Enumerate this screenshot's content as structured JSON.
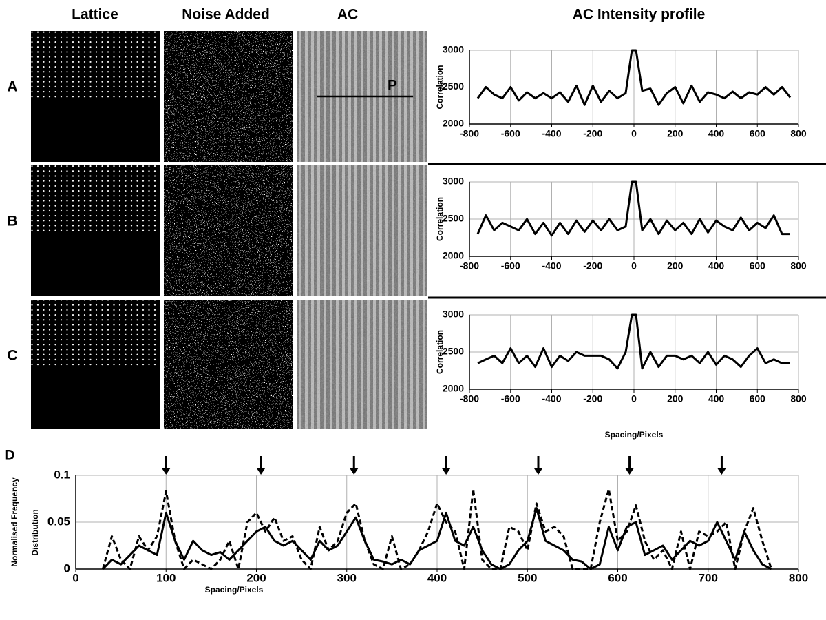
{
  "figure": {
    "headers": [
      "Lattice",
      "Noise Added",
      "AC",
      "AC Intensity profile"
    ],
    "panel_labels": [
      "A",
      "B",
      "C",
      "D"
    ],
    "profile_marker": "P"
  },
  "chart_data": [
    {
      "type": "line",
      "ylabel": "Correlation",
      "xlim": [
        -800,
        800
      ],
      "xticks": [
        -800,
        -600,
        -400,
        -200,
        0,
        200,
        400,
        600,
        800
      ],
      "ylim": [
        2000,
        3000
      ],
      "yticks": [
        2000,
        2500,
        3000
      ],
      "grid": true,
      "x": [
        -760,
        -720,
        -680,
        -640,
        -600,
        -560,
        -520,
        -480,
        -440,
        -400,
        -360,
        -320,
        -280,
        -240,
        -200,
        -160,
        -120,
        -80,
        -40,
        -10,
        10,
        40,
        80,
        120,
        160,
        200,
        240,
        280,
        320,
        360,
        400,
        440,
        480,
        520,
        560,
        600,
        640,
        680,
        720,
        760
      ],
      "series": [
        {
          "color": "#000000",
          "style": "solid",
          "values": [
            2350,
            2500,
            2400,
            2350,
            2500,
            2320,
            2430,
            2350,
            2420,
            2350,
            2430,
            2300,
            2520,
            2260,
            2520,
            2300,
            2450,
            2350,
            2420,
            3000,
            3000,
            2450,
            2480,
            2260,
            2420,
            2500,
            2280,
            2520,
            2300,
            2430,
            2400,
            2350,
            2440,
            2350,
            2430,
            2400,
            2500,
            2400,
            2500,
            2360
          ]
        }
      ]
    },
    {
      "type": "line",
      "ylabel": "Correlation",
      "xlim": [
        -800,
        800
      ],
      "xticks": [
        -800,
        -600,
        -400,
        -200,
        0,
        200,
        400,
        600,
        800
      ],
      "ylim": [
        2000,
        3000
      ],
      "yticks": [
        2000,
        2500,
        3000
      ],
      "grid": true,
      "x": [
        -760,
        -720,
        -680,
        -640,
        -600,
        -560,
        -520,
        -480,
        -440,
        -400,
        -360,
        -320,
        -280,
        -240,
        -200,
        -160,
        -120,
        -80,
        -40,
        -10,
        10,
        40,
        80,
        120,
        160,
        200,
        240,
        280,
        320,
        360,
        400,
        440,
        480,
        520,
        560,
        600,
        640,
        680,
        720,
        760
      ],
      "series": [
        {
          "color": "#000000",
          "style": "solid",
          "values": [
            2300,
            2550,
            2350,
            2450,
            2400,
            2350,
            2500,
            2300,
            2450,
            2280,
            2450,
            2300,
            2480,
            2330,
            2480,
            2350,
            2500,
            2350,
            2400,
            3000,
            3000,
            2350,
            2500,
            2300,
            2480,
            2350,
            2450,
            2300,
            2500,
            2320,
            2480,
            2400,
            2350,
            2520,
            2350,
            2450,
            2380,
            2550,
            2300,
            2300
          ]
        }
      ]
    },
    {
      "type": "line",
      "ylabel": "Correlation",
      "xlabel": "Spacing/Pixels",
      "xlim": [
        -800,
        800
      ],
      "xticks": [
        -800,
        -600,
        -400,
        -200,
        0,
        200,
        400,
        600,
        800
      ],
      "ylim": [
        2000,
        3000
      ],
      "yticks": [
        2000,
        2500,
        3000
      ],
      "grid": true,
      "x": [
        -760,
        -720,
        -680,
        -640,
        -600,
        -560,
        -520,
        -480,
        -440,
        -400,
        -360,
        -320,
        -280,
        -240,
        -200,
        -160,
        -120,
        -80,
        -40,
        -10,
        10,
        40,
        80,
        120,
        160,
        200,
        240,
        280,
        320,
        360,
        400,
        440,
        480,
        520,
        560,
        600,
        640,
        680,
        720,
        760
      ],
      "series": [
        {
          "color": "#000000",
          "style": "solid",
          "values": [
            2350,
            2400,
            2450,
            2350,
            2550,
            2350,
            2450,
            2300,
            2550,
            2300,
            2450,
            2380,
            2500,
            2450,
            2450,
            2450,
            2400,
            2280,
            2500,
            3000,
            3000,
            2280,
            2500,
            2300,
            2450,
            2450,
            2400,
            2450,
            2350,
            2500,
            2330,
            2450,
            2400,
            2300,
            2450,
            2550,
            2350,
            2400,
            2350,
            2350
          ]
        }
      ]
    },
    {
      "type": "line",
      "ylabel": [
        "Normalised Frequency",
        "Distribution"
      ],
      "xlabel": "Spacing/Pixels",
      "xlim": [
        0,
        800
      ],
      "xticks": [
        0,
        100,
        200,
        300,
        400,
        500,
        600,
        700,
        800
      ],
      "ylim": [
        0,
        0.1
      ],
      "yticks": [
        0,
        0.05,
        0.1
      ],
      "grid": true,
      "arrows": [
        100,
        205,
        308,
        410,
        512,
        613,
        715
      ],
      "x": [
        30,
        40,
        50,
        60,
        70,
        80,
        90,
        100,
        110,
        120,
        130,
        140,
        150,
        160,
        170,
        180,
        190,
        200,
        210,
        220,
        230,
        240,
        250,
        260,
        270,
        280,
        290,
        300,
        310,
        320,
        330,
        340,
        350,
        360,
        370,
        380,
        390,
        400,
        410,
        420,
        430,
        440,
        450,
        460,
        470,
        480,
        490,
        500,
        510,
        520,
        530,
        540,
        550,
        560,
        570,
        580,
        590,
        600,
        610,
        620,
        630,
        640,
        650,
        660,
        670,
        680,
        690,
        700,
        710,
        720,
        730,
        740,
        750,
        760,
        770
      ],
      "series": [
        {
          "color": "#000000",
          "style": "solid",
          "values": [
            0,
            0.01,
            0.005,
            0.015,
            0.025,
            0.02,
            0.015,
            0.06,
            0.03,
            0.01,
            0.03,
            0.02,
            0.015,
            0.018,
            0.01,
            0.02,
            0.03,
            0.04,
            0.045,
            0.03,
            0.025,
            0.03,
            0.02,
            0.01,
            0.03,
            0.02,
            0.025,
            0.04,
            0.055,
            0.03,
            0.01,
            0.008,
            0.005,
            0.01,
            0.005,
            0.02,
            0.025,
            0.03,
            0.06,
            0.03,
            0.025,
            0.045,
            0.02,
            0.005,
            0,
            0.005,
            0.02,
            0.03,
            0.065,
            0.03,
            0.025,
            0.02,
            0.01,
            0.008,
            0,
            0.005,
            0.045,
            0.02,
            0.045,
            0.05,
            0.015,
            0.02,
            0.025,
            0.01,
            0.02,
            0.03,
            0.025,
            0.03,
            0.05,
            0.03,
            0.01,
            0.04,
            0.02,
            0.005,
            0
          ]
        },
        {
          "color": "#000000",
          "style": "dashed",
          "values": [
            0,
            0.035,
            0.01,
            0,
            0.035,
            0.02,
            0.035,
            0.083,
            0.03,
            0,
            0.01,
            0.005,
            0,
            0.01,
            0.03,
            0,
            0.05,
            0.06,
            0.04,
            0.055,
            0.03,
            0.035,
            0.01,
            0,
            0.045,
            0.02,
            0.03,
            0.06,
            0.07,
            0.03,
            0.005,
            0,
            0.035,
            0,
            0.005,
            0.02,
            0.04,
            0.07,
            0.05,
            0.04,
            0,
            0.085,
            0.01,
            0,
            0,
            0.045,
            0.04,
            0.02,
            0.07,
            0.04,
            0.045,
            0.035,
            0,
            0,
            0,
            0.05,
            0.085,
            0.03,
            0.04,
            0.068,
            0.03,
            0.01,
            0.02,
            0,
            0.04,
            0,
            0.04,
            0.035,
            0.04,
            0.05,
            0,
            0.04,
            0.065,
            0.03,
            0
          ]
        }
      ]
    }
  ]
}
